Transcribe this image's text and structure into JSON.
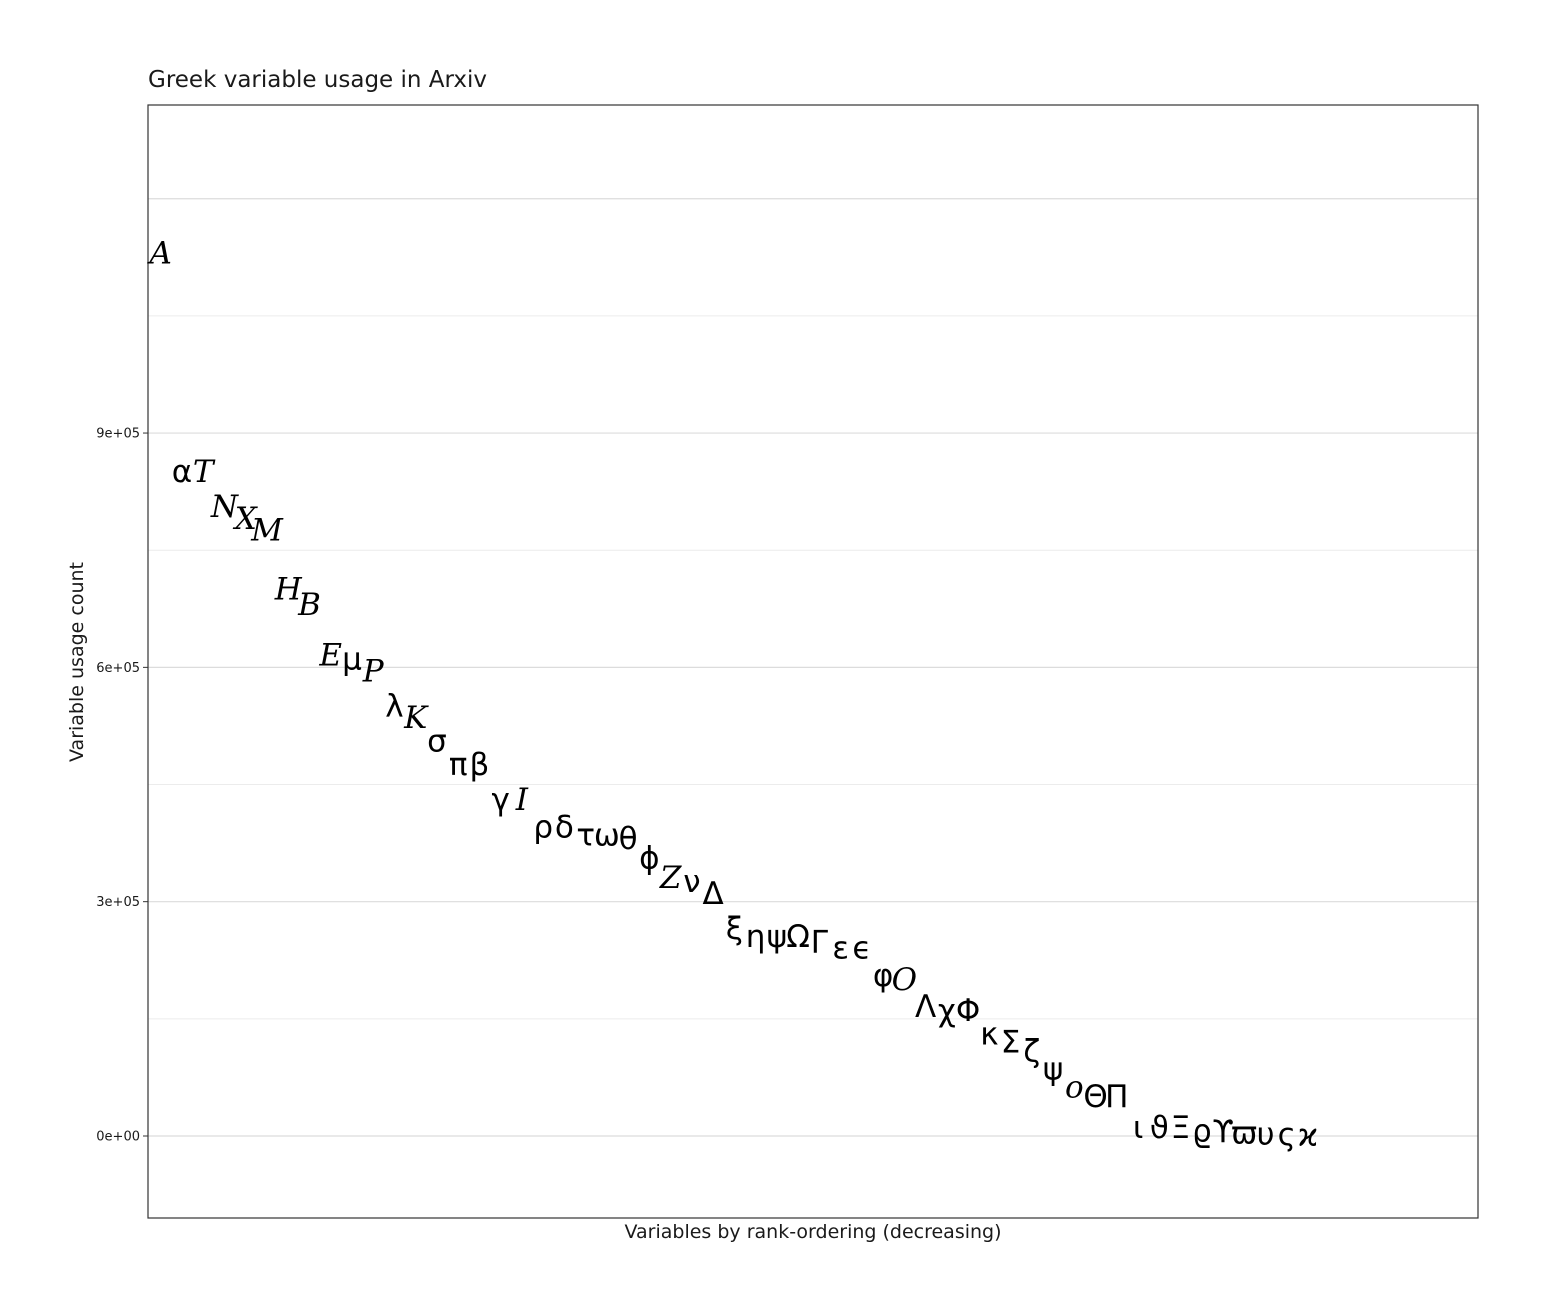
{
  "chart_data": {
    "type": "scatter",
    "title": "Greek variable usage in Arxiv",
    "xlabel": "Variables by rank-ordering (decreasing)",
    "ylabel": "Variable usage count",
    "y_ticks": [
      "0e+00",
      "3e+05",
      "6e+05",
      "9e+05"
    ],
    "y_tick_values": [
      0,
      300000,
      600000,
      900000
    ],
    "ylim": [
      -105000,
      1320000
    ],
    "xlim": [
      0.4,
      63
    ],
    "grid": "horizontal",
    "legend": "none",
    "marker": "letter glyph",
    "points": [
      {
        "rank": 1,
        "label": "A",
        "italic": true,
        "count": 1130000
      },
      {
        "rank": 2,
        "label": "α",
        "italic": false,
        "count": 850000
      },
      {
        "rank": 3,
        "label": "T",
        "italic": true,
        "count": 850000
      },
      {
        "rank": 4,
        "label": "N",
        "italic": true,
        "count": 805000
      },
      {
        "rank": 5,
        "label": "X",
        "italic": true,
        "count": 790000
      },
      {
        "rank": 6,
        "label": "M",
        "italic": true,
        "count": 775000
      },
      {
        "rank": 7,
        "label": "H",
        "italic": true,
        "count": 700000
      },
      {
        "rank": 8,
        "label": "B",
        "italic": true,
        "count": 680000
      },
      {
        "rank": 9,
        "label": "E",
        "italic": true,
        "count": 615000
      },
      {
        "rank": 10,
        "label": "μ",
        "italic": false,
        "count": 610000
      },
      {
        "rank": 11,
        "label": "P",
        "italic": true,
        "count": 595000
      },
      {
        "rank": 12,
        "label": "λ",
        "italic": false,
        "count": 550000
      },
      {
        "rank": 13,
        "label": "K",
        "italic": true,
        "count": 535000
      },
      {
        "rank": 14,
        "label": "σ",
        "italic": false,
        "count": 505000
      },
      {
        "rank": 15,
        "label": "π",
        "italic": false,
        "count": 475000
      },
      {
        "rank": 16,
        "label": "β",
        "italic": false,
        "count": 475000
      },
      {
        "rank": 17,
        "label": "γ",
        "italic": false,
        "count": 430000
      },
      {
        "rank": 18,
        "label": "I",
        "italic": true,
        "count": 430000
      },
      {
        "rank": 19,
        "label": "ρ",
        "italic": false,
        "count": 395000
      },
      {
        "rank": 20,
        "label": "δ",
        "italic": false,
        "count": 395000
      },
      {
        "rank": 21,
        "label": "τ",
        "italic": false,
        "count": 385000
      },
      {
        "rank": 22,
        "label": "ω",
        "italic": false,
        "count": 385000
      },
      {
        "rank": 23,
        "label": "θ",
        "italic": false,
        "count": 380000
      },
      {
        "rank": 24,
        "label": "ϕ",
        "italic": false,
        "count": 355000
      },
      {
        "rank": 25,
        "label": "Z",
        "italic": true,
        "count": 330000
      },
      {
        "rank": 26,
        "label": "ν",
        "italic": false,
        "count": 325000
      },
      {
        "rank": 27,
        "label": "Δ",
        "italic": false,
        "count": 310000
      },
      {
        "rank": 28,
        "label": "ξ",
        "italic": false,
        "count": 265000
      },
      {
        "rank": 29,
        "label": "η",
        "italic": false,
        "count": 255000
      },
      {
        "rank": 30,
        "label": "ψ",
        "italic": false,
        "count": 255000
      },
      {
        "rank": 31,
        "label": "Ω",
        "italic": false,
        "count": 255000
      },
      {
        "rank": 32,
        "label": "Γ",
        "italic": false,
        "count": 248000
      },
      {
        "rank": 33,
        "label": "ε",
        "italic": false,
        "count": 240000
      },
      {
        "rank": 34,
        "label": "ϵ",
        "italic": false,
        "count": 240000
      },
      {
        "rank": 35,
        "label": "φ",
        "italic": false,
        "count": 205000
      },
      {
        "rank": 36,
        "label": "O",
        "italic": true,
        "count": 200000
      },
      {
        "rank": 37,
        "label": "Λ",
        "italic": false,
        "count": 165000
      },
      {
        "rank": 38,
        "label": "χ",
        "italic": false,
        "count": 160000
      },
      {
        "rank": 39,
        "label": "Φ",
        "italic": false,
        "count": 160000
      },
      {
        "rank": 40,
        "label": "κ",
        "italic": false,
        "count": 130000
      },
      {
        "rank": 41,
        "label": "Σ",
        "italic": false,
        "count": 120000
      },
      {
        "rank": 42,
        "label": "ζ",
        "italic": false,
        "count": 108000
      },
      {
        "rank": 43,
        "label": "ψ",
        "italic": false,
        "count": 85000
      },
      {
        "rank": 44,
        "label": "o",
        "italic": true,
        "count": 62000
      },
      {
        "rank": 45,
        "label": "Θ",
        "italic": false,
        "count": 50000
      },
      {
        "rank": 46,
        "label": "Π",
        "italic": false,
        "count": 50000
      },
      {
        "rank": 47,
        "label": "ι",
        "italic": false,
        "count": 10000
      },
      {
        "rank": 48,
        "label": "ϑ",
        "italic": false,
        "count": 10000
      },
      {
        "rank": 49,
        "label": "Ξ",
        "italic": false,
        "count": 10000
      },
      {
        "rank": 50,
        "label": "ϱ",
        "italic": false,
        "count": 6000
      },
      {
        "rank": 51,
        "label": "ϒ",
        "italic": false,
        "count": 5000
      },
      {
        "rank": 52,
        "label": "ϖ",
        "italic": false,
        "count": 3000
      },
      {
        "rank": 53,
        "label": "υ",
        "italic": false,
        "count": 2000
      },
      {
        "rank": 54,
        "label": "ς",
        "italic": false,
        "count": 1000
      },
      {
        "rank": 55,
        "label": "ϰ",
        "italic": false,
        "count": 800
      }
    ]
  }
}
